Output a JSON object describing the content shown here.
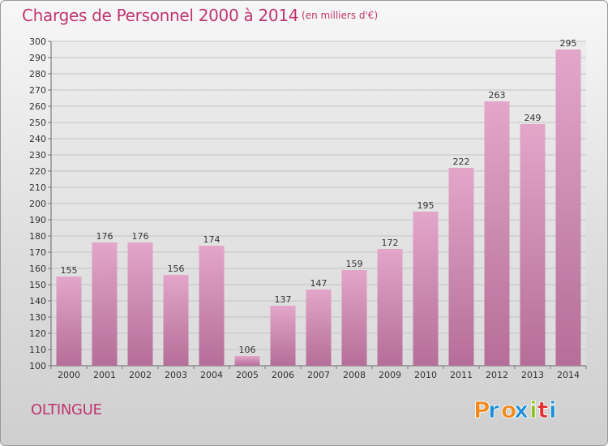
{
  "title": "Charges de Personnel 2000 à 2014",
  "subtitle": "(en milliers d'€)",
  "commune": "OLTINGUE",
  "brand": "Proxiti",
  "colors": {
    "title": "#c0356f",
    "bar_top": "#e3a6c9",
    "bar_bottom": "#b56e98",
    "logo_letters": [
      "#f08a1c",
      "#1c8fd8",
      "#f08a1c",
      "#1c8fd8",
      "#90c41c",
      "#e0302f",
      "#1c8fd8"
    ]
  },
  "chart_data": {
    "type": "bar",
    "title": "Charges de Personnel 2000 à 2014",
    "subtitle": "(en milliers d'€)",
    "categories": [
      "2000",
      "2001",
      "2002",
      "2003",
      "2004",
      "2005",
      "2006",
      "2007",
      "2008",
      "2009",
      "2010",
      "2011",
      "2012",
      "2013",
      "2014"
    ],
    "values": [
      155,
      176,
      176,
      156,
      174,
      106,
      137,
      147,
      159,
      172,
      195,
      222,
      263,
      249,
      295
    ],
    "ylim": [
      100,
      300
    ],
    "yticks": [
      100,
      110,
      120,
      130,
      140,
      150,
      160,
      170,
      180,
      190,
      200,
      210,
      220,
      230,
      240,
      250,
      260,
      270,
      280,
      290,
      300
    ],
    "grid": true,
    "data_labels": true
  }
}
